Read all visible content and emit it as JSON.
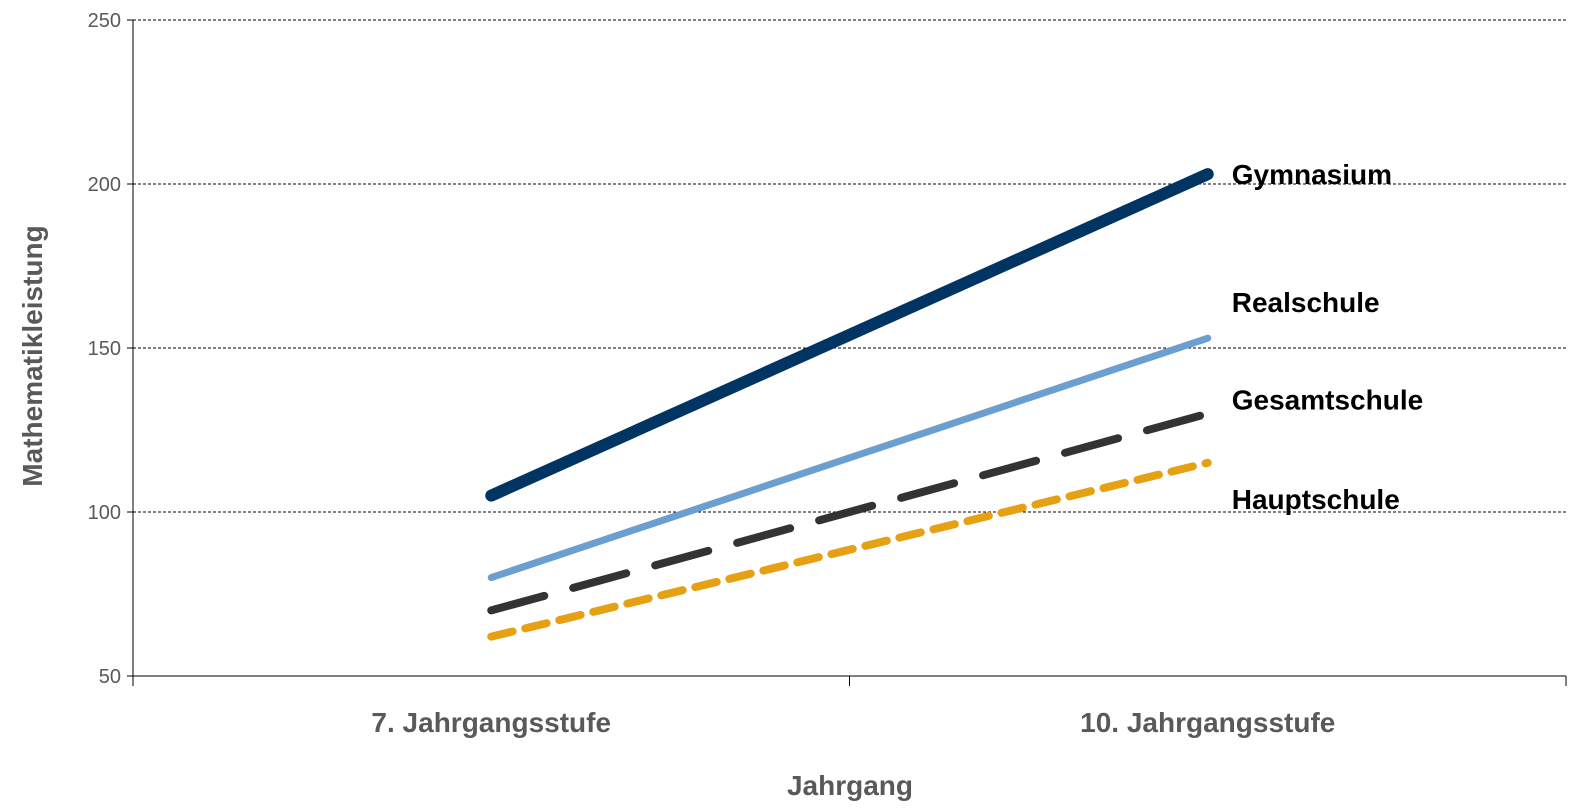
{
  "chart_data": {
    "type": "line",
    "title": "",
    "xlabel": "Jahrgang",
    "ylabel": "Mathematikleistung",
    "categories": [
      "7. Jahrgangsstufe",
      "10. Jahrgangsstufe"
    ],
    "ylim": [
      50,
      250
    ],
    "yticks": [
      "50",
      "100",
      "150",
      "200",
      "250"
    ],
    "grid": true,
    "legend": "labels at line ends (right)",
    "series": [
      {
        "name": "Gymnasium",
        "values": [
          105,
          203
        ],
        "color": "#003462",
        "style": "solid-thick"
      },
      {
        "name": "Realschule",
        "values": [
          80,
          153
        ],
        "color": "#6B9FD0",
        "style": "solid"
      },
      {
        "name": "Gesamtschule",
        "values": [
          70,
          130
        ],
        "color": "#333333",
        "style": "long-dash"
      },
      {
        "name": "Hauptschule",
        "values": [
          62,
          115
        ],
        "color": "#E5A113",
        "style": "short-dash"
      }
    ]
  }
}
